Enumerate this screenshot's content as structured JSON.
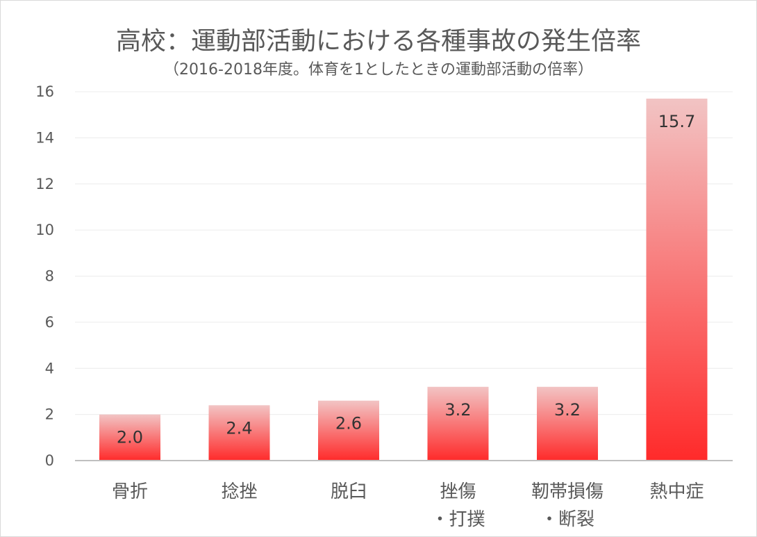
{
  "chart_data": {
    "type": "bar",
    "title": "高校：運動部活動における各種事故の発生倍率",
    "subtitle": "（2016-2018年度。体育を1としたときの運動部活動の倍率）",
    "xlabel": "",
    "ylabel": "",
    "ylim": [
      0,
      16
    ],
    "yticks": [
      0,
      2,
      4,
      6,
      8,
      10,
      12,
      14,
      16
    ],
    "ytick_labels": [
      "0",
      "2",
      "4",
      "6",
      "8",
      "10",
      "12",
      "14",
      "16"
    ],
    "grid": true,
    "legend": "none",
    "categories": [
      [
        "骨折"
      ],
      [
        "捻挫"
      ],
      [
        "脱臼"
      ],
      [
        "挫傷",
        "・打撲"
      ],
      [
        "靭帯損傷",
        "・断裂"
      ],
      [
        "熱中症"
      ]
    ],
    "values": [
      2.0,
      2.4,
      2.6,
      3.2,
      3.2,
      15.7
    ],
    "data_labels": [
      "2.0",
      "2.4",
      "2.6",
      "3.2",
      "3.2",
      "15.7"
    ],
    "colors": {
      "bar_top": "#f2c4c4",
      "bar_bottom": "#ff2a2a",
      "grid": "#ececec",
      "axis": "#bfbfbf",
      "text": "#595959",
      "label": "#333333"
    }
  }
}
